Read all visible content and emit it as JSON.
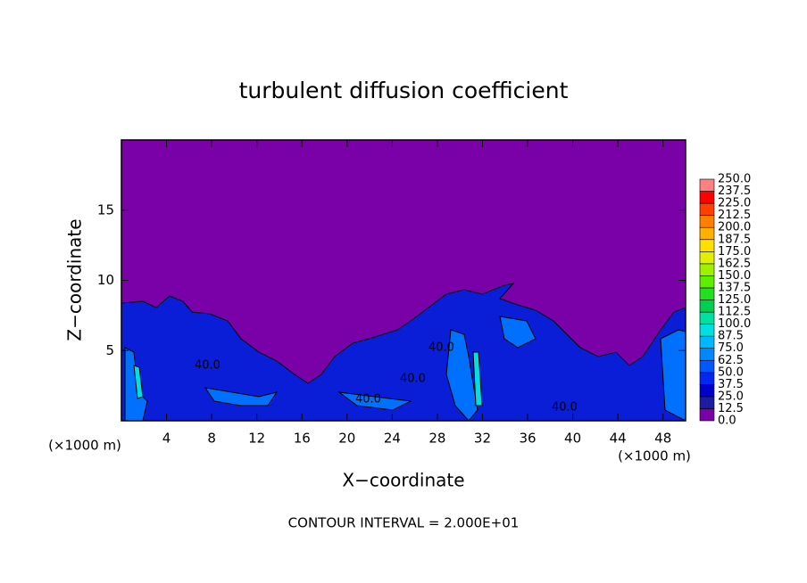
{
  "chart_data": {
    "type": "contour",
    "title": "turbulent diffusion coefficient",
    "x_label": "X−coordinate",
    "y_label": "Z−coordinate",
    "x_unit_left": "(×1000 m)",
    "x_unit_right": "(×1000 m)",
    "footer": "CONTOUR INTERVAL = 2.000E+01",
    "xlim": [
      0,
      50
    ],
    "ylim": [
      0,
      20
    ],
    "xticks": [
      4,
      8,
      12,
      16,
      20,
      24,
      28,
      32,
      36,
      40,
      44,
      48
    ],
    "yticks": [
      5,
      10,
      15
    ],
    "background_color": "#7a00a8",
    "contour_labels": [
      "40.0",
      "40.0",
      "40.0",
      "40.0",
      "40.0"
    ],
    "colorbar": {
      "levels": [
        {
          "value": 0,
          "label": "0.0"
        },
        {
          "value": 12.5,
          "label": "12.5"
        },
        {
          "value": 25,
          "label": "25.0"
        },
        {
          "value": 37.5,
          "label": "37.5"
        },
        {
          "value": 50,
          "label": "50.0"
        },
        {
          "value": 62.5,
          "label": "62.5"
        },
        {
          "value": 75,
          "label": "75.0"
        },
        {
          "value": 87.5,
          "label": "87.5"
        },
        {
          "value": 100,
          "label": "100.0"
        },
        {
          "value": 112.5,
          "label": "112.5"
        },
        {
          "value": 125,
          "label": "125.0"
        },
        {
          "value": 137.5,
          "label": "137.5"
        },
        {
          "value": 150,
          "label": "150.0"
        },
        {
          "value": 162.5,
          "label": "162.5"
        },
        {
          "value": 175,
          "label": "175.0"
        },
        {
          "value": 187.5,
          "label": "187.5"
        },
        {
          "value": 200,
          "label": "200.0"
        },
        {
          "value": 212.5,
          "label": "212.5"
        },
        {
          "value": 225,
          "label": "225.0"
        },
        {
          "value": 237.5,
          "label": "237.5"
        },
        {
          "value": 250,
          "label": "250.0"
        }
      ],
      "colors": [
        "#7a00a8",
        "#1c1ca0",
        "#0000cc",
        "#0028ee",
        "#0058ff",
        "#0088ff",
        "#00b8ff",
        "#00e0e0",
        "#00e0a0",
        "#00d050",
        "#20e020",
        "#60ee00",
        "#a0f000",
        "#e0f000",
        "#ffe000",
        "#ffb000",
        "#ff8000",
        "#ff4000",
        "#ff0000",
        "#ff8080"
      ]
    }
  }
}
